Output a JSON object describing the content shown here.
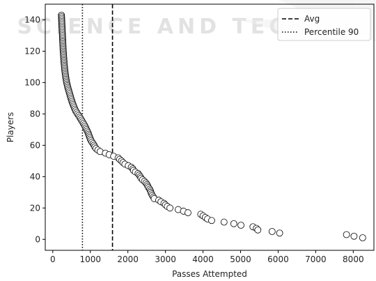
{
  "watermark": "SCIENCE AND TECH",
  "chart_data": {
    "type": "scatter",
    "xlabel": "Passes Attempted",
    "ylabel": "Players",
    "xlim": [
      -200,
      8550
    ],
    "ylim": [
      -7,
      150
    ],
    "xticks": [
      0,
      1000,
      2000,
      3000,
      4000,
      5000,
      6000,
      7000,
      8000
    ],
    "yticks": [
      0,
      20,
      40,
      60,
      80,
      100,
      120,
      140
    ],
    "grid": false,
    "legend_placement": "top-right",
    "vlines": [
      {
        "name": "Avg",
        "x": 1590,
        "style": "dashed"
      },
      {
        "name": "Percentile 90",
        "x": 790,
        "style": "dotted"
      }
    ],
    "series": [
      {
        "points": [
          [
            230,
            143
          ],
          [
            233,
            142
          ],
          [
            236,
            141
          ],
          [
            238,
            140
          ],
          [
            240,
            139
          ],
          [
            242,
            138
          ],
          [
            244,
            137
          ],
          [
            246,
            136
          ],
          [
            248,
            135
          ],
          [
            250,
            134
          ],
          [
            252,
            133
          ],
          [
            254,
            132
          ],
          [
            256,
            131
          ],
          [
            258,
            130
          ],
          [
            260,
            129
          ],
          [
            262,
            128
          ],
          [
            264,
            127
          ],
          [
            266,
            126
          ],
          [
            268,
            125
          ],
          [
            270,
            124
          ],
          [
            272,
            123
          ],
          [
            274,
            122
          ],
          [
            276,
            121
          ],
          [
            279,
            120
          ],
          [
            282,
            119
          ],
          [
            285,
            118
          ],
          [
            288,
            117
          ],
          [
            291,
            116
          ],
          [
            294,
            115
          ],
          [
            297,
            114
          ],
          [
            300,
            113
          ],
          [
            304,
            112
          ],
          [
            308,
            111
          ],
          [
            312,
            110
          ],
          [
            316,
            109
          ],
          [
            320,
            108
          ],
          [
            325,
            107
          ],
          [
            330,
            106
          ],
          [
            336,
            105
          ],
          [
            342,
            104
          ],
          [
            348,
            103
          ],
          [
            355,
            102
          ],
          [
            362,
            101
          ],
          [
            370,
            100
          ],
          [
            380,
            99
          ],
          [
            390,
            98
          ],
          [
            400,
            97
          ],
          [
            412,
            96
          ],
          [
            424,
            95
          ],
          [
            436,
            94
          ],
          [
            448,
            93
          ],
          [
            460,
            92
          ],
          [
            472,
            91
          ],
          [
            484,
            90
          ],
          [
            497,
            89
          ],
          [
            510,
            88
          ],
          [
            525,
            87
          ],
          [
            540,
            86
          ],
          [
            556,
            85
          ],
          [
            572,
            84
          ],
          [
            590,
            83
          ],
          [
            610,
            82
          ],
          [
            635,
            81
          ],
          [
            660,
            80
          ],
          [
            690,
            79
          ],
          [
            715,
            78
          ],
          [
            740,
            77
          ],
          [
            765,
            76
          ],
          [
            790,
            75
          ],
          [
            815,
            74
          ],
          [
            840,
            73
          ],
          [
            860,
            72
          ],
          [
            880,
            71
          ],
          [
            900,
            70
          ],
          [
            920,
            69
          ],
          [
            940,
            68
          ],
          [
            955,
            67
          ],
          [
            970,
            66
          ],
          [
            985,
            65
          ],
          [
            1000,
            64
          ],
          [
            1020,
            63
          ],
          [
            1045,
            62
          ],
          [
            1075,
            61
          ],
          [
            1100,
            60
          ],
          [
            1120,
            59
          ],
          [
            1150,
            58
          ],
          [
            1200,
            57
          ],
          [
            1260,
            56
          ],
          [
            1400,
            55
          ],
          [
            1500,
            54
          ],
          [
            1620,
            53
          ],
          [
            1740,
            52
          ],
          [
            1780,
            51
          ],
          [
            1830,
            50
          ],
          [
            1870,
            49
          ],
          [
            1920,
            48
          ],
          [
            2010,
            47
          ],
          [
            2090,
            46
          ],
          [
            2130,
            45
          ],
          [
            2150,
            44
          ],
          [
            2200,
            43
          ],
          [
            2270,
            42
          ],
          [
            2300,
            41
          ],
          [
            2330,
            40
          ],
          [
            2350,
            39
          ],
          [
            2390,
            38
          ],
          [
            2440,
            37
          ],
          [
            2480,
            36
          ],
          [
            2510,
            35
          ],
          [
            2530,
            34
          ],
          [
            2550,
            33
          ],
          [
            2580,
            32
          ],
          [
            2600,
            31
          ],
          [
            2610,
            30
          ],
          [
            2630,
            29
          ],
          [
            2650,
            28
          ],
          [
            2680,
            27
          ],
          [
            2700,
            26
          ],
          [
            2820,
            25
          ],
          [
            2880,
            24
          ],
          [
            2960,
            23
          ],
          [
            3000,
            22
          ],
          [
            3050,
            21
          ],
          [
            3120,
            20
          ],
          [
            3340,
            19
          ],
          [
            3480,
            18
          ],
          [
            3600,
            17
          ],
          [
            3940,
            16
          ],
          [
            4000,
            15
          ],
          [
            4060,
            14
          ],
          [
            4120,
            13
          ],
          [
            4230,
            12
          ],
          [
            4560,
            11
          ],
          [
            4820,
            10
          ],
          [
            5010,
            9
          ],
          [
            5330,
            8
          ],
          [
            5420,
            7
          ],
          [
            5460,
            6
          ],
          [
            5840,
            5
          ],
          [
            6040,
            4
          ],
          [
            7820,
            3
          ],
          [
            8020,
            2
          ],
          [
            8250,
            1
          ]
        ]
      }
    ],
    "colors": {
      "marker_fill": "#ffffff",
      "marker_edge": "#000000",
      "vline": "#000000"
    }
  }
}
